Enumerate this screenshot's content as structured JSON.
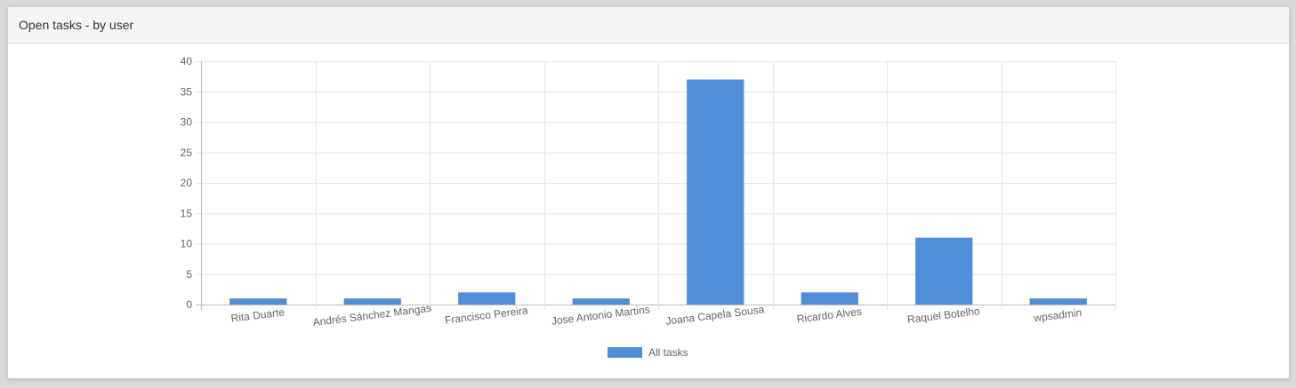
{
  "panel": {
    "title": "Open tasks - by user"
  },
  "chart_data": {
    "type": "bar",
    "title": "",
    "xlabel": "",
    "ylabel": "",
    "categories": [
      "Rita Duarte",
      "Andrés Sánchez Mangas",
      "Francisco Pereira",
      "Jose Antonio Martins",
      "Joana Capela Sousa",
      "Ricardo Alves",
      "Raquel Botelho",
      "wpsadmin"
    ],
    "series": [
      {
        "name": "All tasks",
        "values": [
          1,
          1,
          2,
          1,
          37,
          2,
          11,
          1
        ],
        "color": "#4f8fd9"
      }
    ],
    "ylim": [
      0,
      40
    ],
    "yticks": [
      0,
      5,
      10,
      15,
      20,
      25,
      30,
      35,
      40
    ],
    "grid": true,
    "legend_position": "bottom"
  }
}
